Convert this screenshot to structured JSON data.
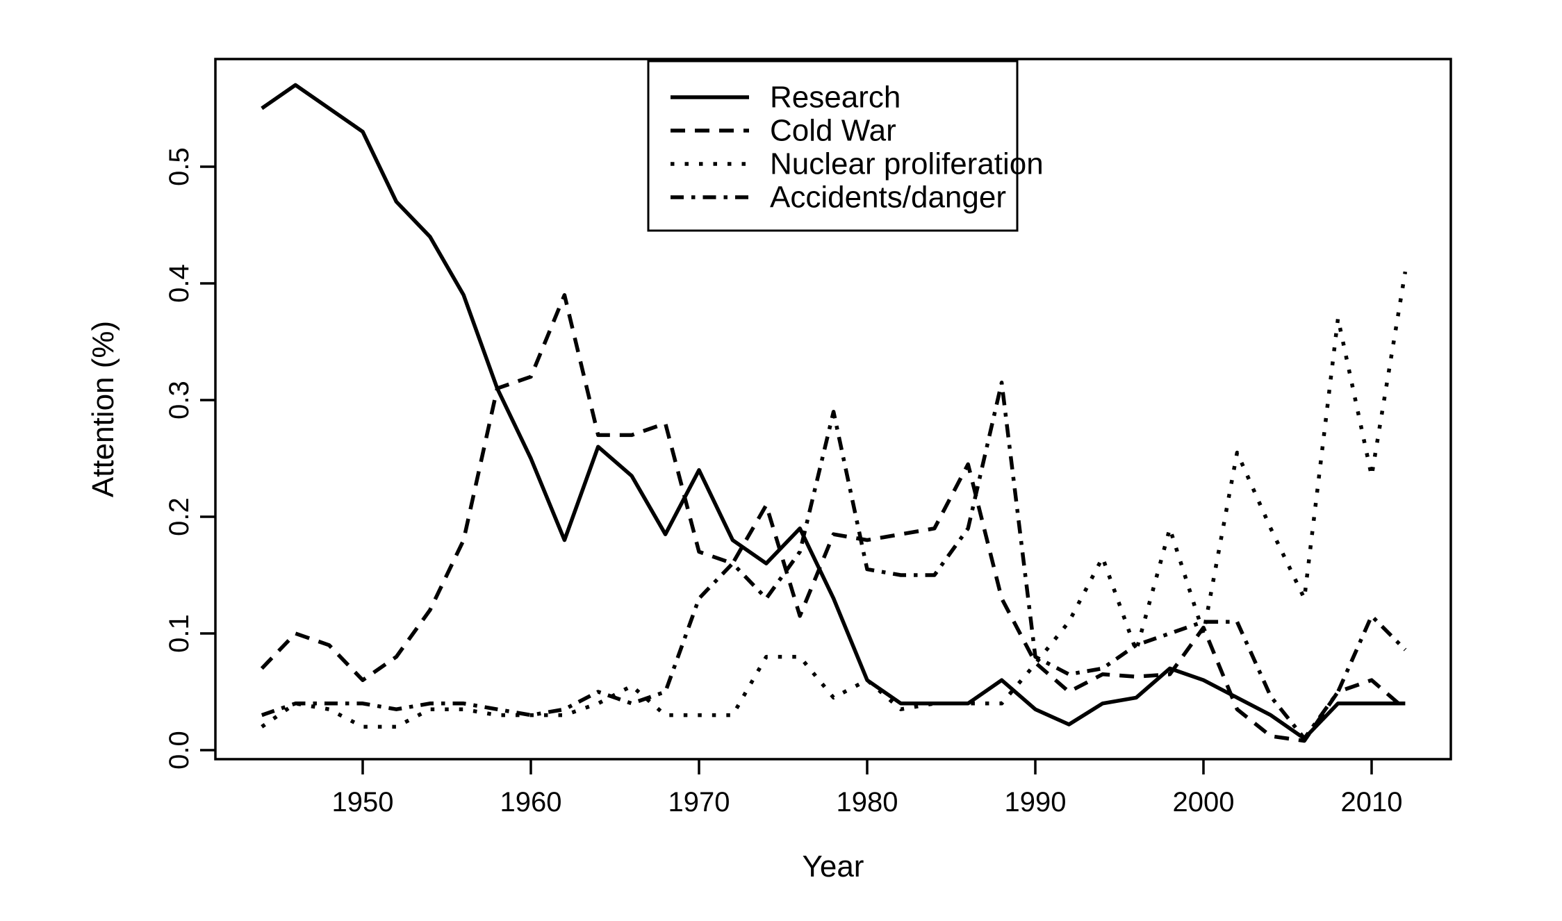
{
  "figure": {
    "background_color": "#ffffff",
    "ink_color": "#000000"
  },
  "chart_data": {
    "type": "line",
    "title": "",
    "xlabel": "Year",
    "ylabel": "Attention (%)",
    "grid": false,
    "legend_position": "top-center, inside plot box",
    "xlim": [
      1941,
      2015
    ],
    "ylim": [
      0.0,
      0.59
    ],
    "x_ticks": [
      "1950",
      "1960",
      "1970",
      "1980",
      "1990",
      "2000",
      "2010"
    ],
    "y_ticks": [
      "0.0",
      "0.1",
      "0.2",
      "0.3",
      "0.4",
      "0.5"
    ],
    "x": [
      1944,
      1946,
      1948,
      1950,
      1952,
      1954,
      1956,
      1958,
      1960,
      1962,
      1964,
      1966,
      1968,
      1970,
      1972,
      1974,
      1976,
      1978,
      1980,
      1982,
      1984,
      1986,
      1988,
      1990,
      1992,
      1994,
      1996,
      1998,
      2000,
      2002,
      2004,
      2006,
      2008,
      2010,
      2012
    ],
    "series": [
      {
        "name": "Research",
        "style": "solid",
        "values": [
          0.55,
          0.57,
          0.55,
          0.53,
          0.47,
          0.44,
          0.39,
          0.31,
          0.25,
          0.18,
          0.26,
          0.235,
          0.185,
          0.24,
          0.18,
          0.16,
          0.19,
          0.13,
          0.06,
          0.04,
          0.04,
          0.04,
          0.06,
          0.035,
          0.022,
          0.04,
          0.045,
          0.07,
          0.06,
          0.045,
          0.03,
          0.01,
          0.04,
          0.04,
          0.04
        ]
      },
      {
        "name": "Cold War",
        "style": "dashed",
        "values": [
          0.07,
          0.1,
          0.09,
          0.06,
          0.08,
          0.12,
          0.18,
          0.31,
          0.32,
          0.39,
          0.27,
          0.27,
          0.28,
          0.17,
          0.16,
          0.21,
          0.115,
          0.185,
          0.18,
          0.185,
          0.19,
          0.245,
          0.13,
          0.075,
          0.05,
          0.065,
          0.063,
          0.065,
          0.105,
          0.035,
          0.012,
          0.008,
          0.05,
          0.06,
          0.035
        ]
      },
      {
        "name": "Nuclear proliferation",
        "style": "dotted",
        "values": [
          0.02,
          0.04,
          0.035,
          0.02,
          0.02,
          0.035,
          0.035,
          0.03,
          0.03,
          0.03,
          0.04,
          0.055,
          0.03,
          0.03,
          0.03,
          0.08,
          0.08,
          0.045,
          0.06,
          0.035,
          0.04,
          0.04,
          0.04,
          0.074,
          0.11,
          0.165,
          0.085,
          0.19,
          0.1,
          0.255,
          0.19,
          0.13,
          0.37,
          0.235,
          0.41
        ]
      },
      {
        "name": "Accidents/danger",
        "style": "dashdot",
        "values": [
          0.03,
          0.04,
          0.04,
          0.04,
          0.035,
          0.04,
          0.04,
          0.035,
          0.03,
          0.035,
          0.05,
          0.04,
          0.05,
          0.13,
          0.16,
          0.13,
          0.17,
          0.29,
          0.155,
          0.15,
          0.15,
          0.19,
          0.315,
          0.08,
          0.065,
          0.07,
          0.09,
          0.1,
          0.11,
          0.11,
          0.046,
          0.01,
          0.05,
          0.115,
          0.086
        ]
      }
    ]
  }
}
